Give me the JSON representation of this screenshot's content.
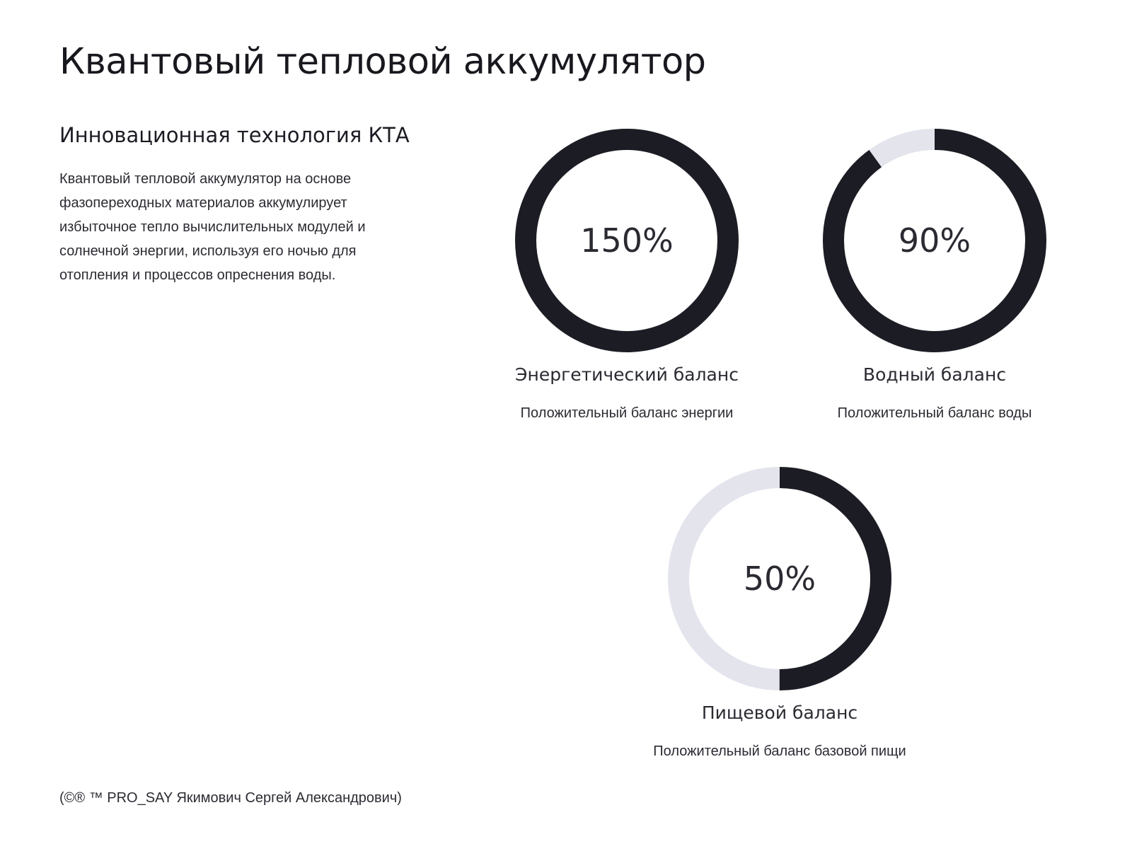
{
  "page": {
    "title": "Квантовый тепловой аккумулятор",
    "subtitle": "Инновационная технология КТА",
    "description": "Квантовый тепловой аккумулятор на основе фазопереходных материалов аккумулирует избыточное тепло вычислительных модулей и солнечной энергии, используя его ночью для отопления и процессов опреснения воды.",
    "footer": "(©® ™ PRO_SAY Якимович Сергей Александрович)"
  },
  "colors": {
    "ring_fill": "#1c1c24",
    "ring_track": "#e3e4ec",
    "ring_track_border": "#d2d3dc"
  },
  "gauges": [
    {
      "value_label": "150%",
      "percent": 150,
      "label": "Энергетический баланс",
      "caption": "Положительный баланс энергии"
    },
    {
      "value_label": "90%",
      "percent": 90,
      "label": "Водный баланс",
      "caption": "Положительный баланс воды"
    },
    {
      "value_label": "50%",
      "percent": 50,
      "label": "Пищевой баланс",
      "caption": "Положительный баланс базовой пищи"
    }
  ]
}
